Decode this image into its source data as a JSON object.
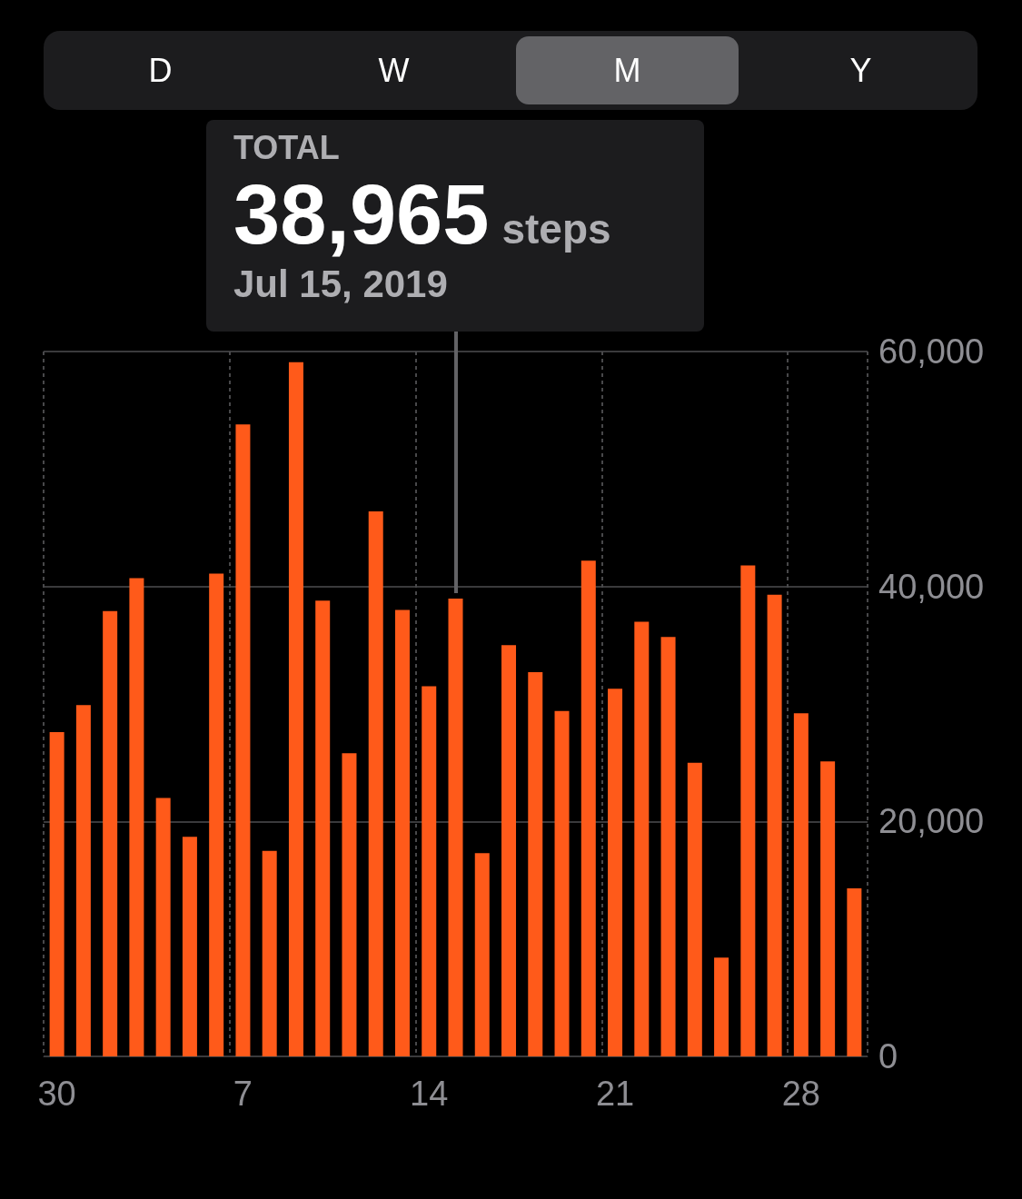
{
  "chart_data": {
    "type": "bar",
    "categories": [
      "30",
      null,
      null,
      null,
      null,
      null,
      null,
      "7",
      null,
      null,
      null,
      null,
      null,
      null,
      "14",
      null,
      null,
      null,
      null,
      null,
      null,
      "21",
      null,
      null,
      null,
      null,
      null,
      null,
      "28",
      null,
      null
    ],
    "values": [
      27600,
      29900,
      37900,
      40700,
      22000,
      18700,
      41100,
      53800,
      17500,
      59100,
      38800,
      25800,
      46400,
      38000,
      31500,
      38965,
      17300,
      35000,
      32700,
      29400,
      42200,
      31300,
      37000,
      35700,
      25000,
      8400,
      41800,
      39300,
      29200,
      25100,
      14300
    ],
    "color": "#ff5a1a",
    "ylim": [
      0,
      60000
    ],
    "yticks": [
      {
        "value": 0,
        "label": "0"
      },
      {
        "value": 20000,
        "label": "20,000"
      },
      {
        "value": 40000,
        "label": "40,000"
      },
      {
        "value": 60000,
        "label": "60,000"
      }
    ],
    "grid": true,
    "annotations": [
      "D",
      "W",
      "M",
      "Y",
      "TOTAL",
      "38,965",
      "steps",
      "Jul 15, 2019"
    ]
  }
}
